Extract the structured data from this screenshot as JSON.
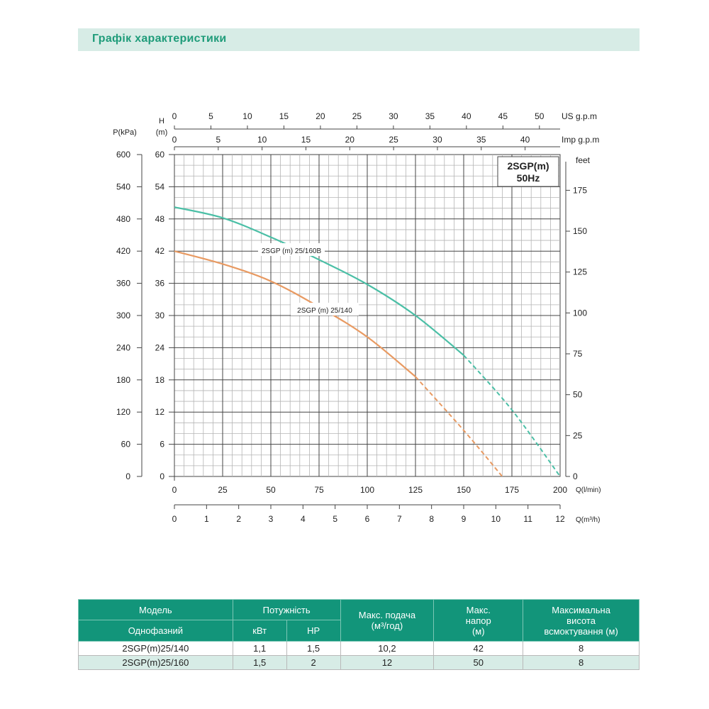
{
  "header": {
    "title": "Графік характеристики"
  },
  "chart_data": {
    "type": "line",
    "badge": {
      "model": "2SGP(m)",
      "freq": "50Hz"
    },
    "x_axes": {
      "lmin": {
        "label": "Q(l/min)",
        "range": [
          0,
          200
        ],
        "ticks": [
          0,
          25,
          50,
          75,
          100,
          125,
          150,
          175,
          200
        ]
      },
      "m3h": {
        "label": "Q(m³/h)",
        "range": [
          0,
          12
        ],
        "ticks": [
          0,
          1,
          2,
          3,
          4,
          5,
          6,
          7,
          8,
          9,
          10,
          11,
          12
        ]
      },
      "usgpm": {
        "label": "US  g.p.m",
        "ticks": [
          0,
          5,
          10,
          15,
          20,
          25,
          30,
          35,
          40,
          45,
          50
        ]
      },
      "impgpm": {
        "label": "Imp  g.p.m",
        "ticks": [
          0,
          5,
          10,
          15,
          20,
          25,
          30,
          35,
          40
        ]
      }
    },
    "y_axes": {
      "head_m": {
        "label_top": "H",
        "label_bottom": "(m)",
        "range": [
          0,
          60
        ],
        "ticks": [
          0,
          6,
          12,
          18,
          24,
          30,
          36,
          42,
          48,
          54,
          60
        ]
      },
      "kpa": {
        "label": "P(kPa)",
        "ticks": [
          0,
          60,
          120,
          180,
          240,
          300,
          360,
          420,
          480,
          540,
          600
        ]
      },
      "feet": {
        "label": "feet",
        "ticks": [
          0,
          25,
          50,
          75,
          100,
          125,
          150,
          175
        ]
      }
    },
    "grid": true,
    "series": [
      {
        "name": "2SGP (m) 25/160B",
        "color": "#4bbfa6",
        "x": [
          0,
          25,
          50,
          75,
          100,
          125,
          150,
          175,
          200
        ],
        "y": [
          50.2,
          48.2,
          44.6,
          40.4,
          35.8,
          30,
          22.6,
          12.4,
          0
        ],
        "dashed_from_x": 150
      },
      {
        "name": "2SGP (m) 25/140",
        "color": "#e89a62",
        "x": [
          0,
          25,
          50,
          75,
          100,
          125,
          150,
          170
        ],
        "y": [
          42,
          39.6,
          36.4,
          31.6,
          26,
          18.6,
          8.6,
          0
        ],
        "dashed_from_x": 125
      }
    ]
  },
  "table": {
    "headers": {
      "model": "Модель",
      "single_phase": "Однофазний",
      "power": "Потужність",
      "kw": "кВт",
      "hp": "HP",
      "max_flow_1": "Макс. подача",
      "max_flow_2": "(м³/год)",
      "max_head_1": "Макс.",
      "max_head_2": "напор",
      "max_head_3": "(м)",
      "suction_1": "Максимальна",
      "suction_2": "висота",
      "suction_3": "всмоктування (м)"
    },
    "rows": [
      {
        "model": "2SGP(m)25/140",
        "kw": "1,1",
        "hp": "1,5",
        "flow": "10,2",
        "head": "42",
        "suction": "8"
      },
      {
        "model": "2SGP(m)25/160",
        "kw": "1,5",
        "hp": "2",
        "flow": "12",
        "head": "50",
        "suction": "8"
      }
    ]
  }
}
